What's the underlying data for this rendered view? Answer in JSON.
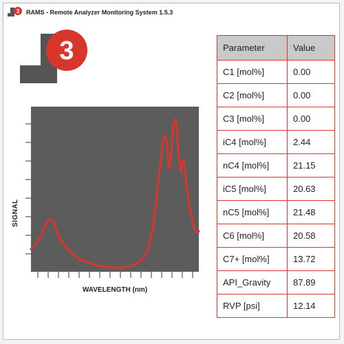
{
  "window": {
    "title": "RAMS - Remote Analyzer Monitoring System 1.5.3",
    "icon": "j3-logo-icon",
    "brand": {
      "letters": "J",
      "sup": "3"
    }
  },
  "colors": {
    "accent": "#d8362b",
    "logo_gray": "#555555",
    "chart_bg": "#5c5c5c"
  },
  "chart": {
    "ylabel": "SIGNAL",
    "xlabel": "WAVELENGTH (nm)"
  },
  "table": {
    "headers": [
      "Parameter",
      "Value"
    ],
    "rows": [
      {
        "param": "C1 [mol%]",
        "value": "0.00"
      },
      {
        "param": "C2 [mol%]",
        "value": "0.00"
      },
      {
        "param": "C3 [mol%]",
        "value": "0.00"
      },
      {
        "param": "iC4 [mol%]",
        "value": "2.44"
      },
      {
        "param": "nC4 [mol%]",
        "value": "21.15"
      },
      {
        "param": "iC5 [mol%]",
        "value": "20.63"
      },
      {
        "param": "nC5 [mol%]",
        "value": "21.48"
      },
      {
        "param": "C6 [mol%]",
        "value": "20.58"
      },
      {
        "param": "C7+ [mol%]",
        "value": "13.72"
      },
      {
        "param": "API_Gravity",
        "value": "87.89"
      },
      {
        "param": "RVP [psi]",
        "value": "12.14"
      }
    ]
  }
}
